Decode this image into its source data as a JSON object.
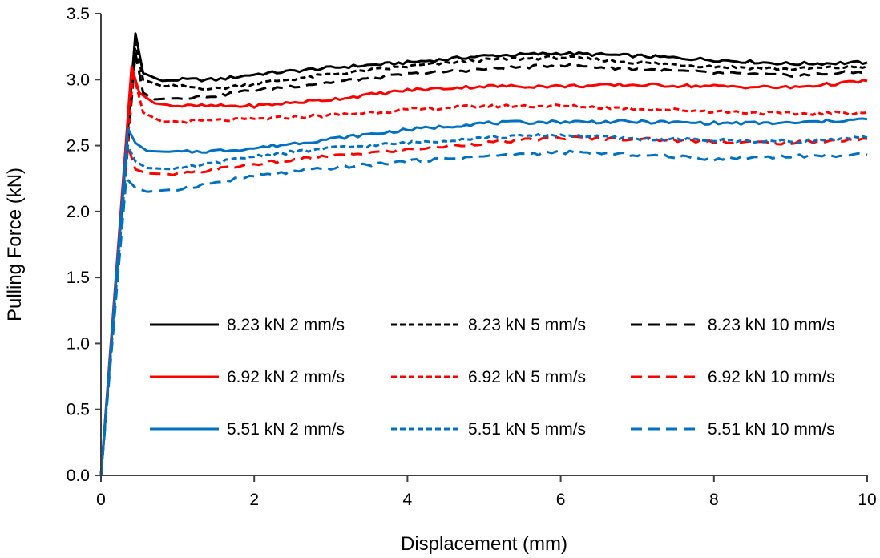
{
  "chart_data": {
    "type": "line",
    "title": "",
    "xlabel": "Displacement (mm)",
    "ylabel": "Pulling Force (kN)",
    "xlim": [
      0,
      10
    ],
    "ylim": [
      0,
      3.5
    ],
    "xticks": [
      0,
      2,
      4,
      6,
      8,
      10
    ],
    "xtick_labels": [
      "0",
      "2",
      "4",
      "6",
      "8",
      "10"
    ],
    "yticks": [
      0,
      0.5,
      1.0,
      1.5,
      2.0,
      2.5,
      3.0,
      3.5
    ],
    "ytick_labels": [
      "0.0",
      "0.5",
      "1.0",
      "1.5",
      "2.0",
      "2.5",
      "3.0",
      "3.5"
    ],
    "grid": false,
    "legend_position": "lower-center (inside plot, 3 columns)",
    "series": [
      {
        "name": "8.23 kN 2 mm/s",
        "color": "#000000",
        "style": "solid",
        "x": [
          0,
          0.45,
          0.55,
          0.8,
          1.0,
          1.5,
          2,
          3,
          4,
          5,
          6,
          7,
          8,
          9,
          10
        ],
        "y": [
          0,
          3.35,
          3.05,
          2.99,
          3.0,
          3.0,
          3.04,
          3.09,
          3.13,
          3.18,
          3.2,
          3.18,
          3.15,
          3.12,
          3.13
        ]
      },
      {
        "name": "8.23 kN 5 mm/s",
        "color": "#000000",
        "style": "short-dash",
        "x": [
          0,
          0.45,
          0.55,
          0.8,
          1.0,
          1.5,
          2,
          3,
          4,
          5,
          6,
          7,
          8,
          9,
          10
        ],
        "y": [
          0,
          3.28,
          3.0,
          2.95,
          2.95,
          2.93,
          2.97,
          3.04,
          3.1,
          3.15,
          3.17,
          3.13,
          3.1,
          3.08,
          3.1
        ]
      },
      {
        "name": "8.23 kN 10 mm/s",
        "color": "#000000",
        "style": "long-dash",
        "x": [
          0,
          0.45,
          0.55,
          0.7,
          1.0,
          1.5,
          2,
          3,
          4,
          5,
          6,
          7,
          8,
          9,
          10
        ],
        "y": [
          0,
          3.2,
          2.9,
          2.85,
          2.86,
          2.88,
          2.92,
          2.98,
          3.04,
          3.08,
          3.11,
          3.08,
          3.05,
          3.03,
          3.06
        ]
      },
      {
        "name": "6.92 kN 2 mm/s",
        "color": "#ff0000",
        "style": "solid",
        "x": [
          0,
          0.4,
          0.5,
          0.7,
          1.0,
          1.5,
          2,
          3,
          4,
          5,
          6,
          7,
          8,
          9,
          10
        ],
        "y": [
          0,
          3.1,
          2.9,
          2.82,
          2.8,
          2.8,
          2.8,
          2.85,
          2.92,
          2.95,
          2.95,
          2.96,
          2.95,
          2.94,
          2.99
        ]
      },
      {
        "name": "6.92 kN 5 mm/s",
        "color": "#ff0000",
        "style": "short-dash",
        "x": [
          0,
          0.42,
          0.55,
          0.8,
          1.0,
          1.5,
          2,
          3,
          4,
          5,
          6,
          7,
          8,
          9,
          10
        ],
        "y": [
          0,
          3.05,
          2.75,
          2.68,
          2.68,
          2.69,
          2.7,
          2.73,
          2.77,
          2.8,
          2.8,
          2.78,
          2.76,
          2.74,
          2.75
        ]
      },
      {
        "name": "6.92 kN 10 mm/s",
        "color": "#ff0000",
        "style": "long-dash",
        "x": [
          0,
          0.35,
          0.45,
          0.6,
          1.0,
          1.5,
          2,
          3,
          4,
          5,
          6,
          7,
          8,
          9,
          10
        ],
        "y": [
          0,
          2.5,
          2.32,
          2.29,
          2.28,
          2.32,
          2.36,
          2.42,
          2.47,
          2.52,
          2.56,
          2.55,
          2.53,
          2.52,
          2.55
        ]
      },
      {
        "name": "5.51 kN 2 mm/s",
        "color": "#0070c0",
        "style": "solid",
        "x": [
          0,
          0.35,
          0.45,
          0.6,
          1.0,
          1.5,
          2,
          3,
          4,
          5,
          6,
          7,
          8,
          9,
          10
        ],
        "y": [
          0,
          2.63,
          2.52,
          2.46,
          2.45,
          2.46,
          2.48,
          2.55,
          2.62,
          2.67,
          2.68,
          2.68,
          2.67,
          2.67,
          2.7
        ]
      },
      {
        "name": "5.51 kN 5 mm/s",
        "color": "#0070c0",
        "style": "short-dash",
        "x": [
          0,
          0.35,
          0.45,
          0.6,
          1.0,
          1.5,
          2,
          3,
          4,
          5,
          6,
          7,
          8,
          9,
          10
        ],
        "y": [
          0,
          2.5,
          2.38,
          2.33,
          2.32,
          2.37,
          2.42,
          2.48,
          2.52,
          2.56,
          2.58,
          2.55,
          2.54,
          2.53,
          2.56
        ]
      },
      {
        "name": "5.51 kN 10 mm/s",
        "color": "#0070c0",
        "style": "long-dash",
        "x": [
          0,
          0.33,
          0.45,
          0.6,
          1.0,
          1.5,
          2,
          3,
          4,
          5,
          6,
          7,
          8,
          9,
          10
        ],
        "y": [
          0,
          2.25,
          2.18,
          2.15,
          2.17,
          2.22,
          2.27,
          2.33,
          2.38,
          2.42,
          2.45,
          2.43,
          2.4,
          2.42,
          2.43
        ]
      }
    ]
  }
}
